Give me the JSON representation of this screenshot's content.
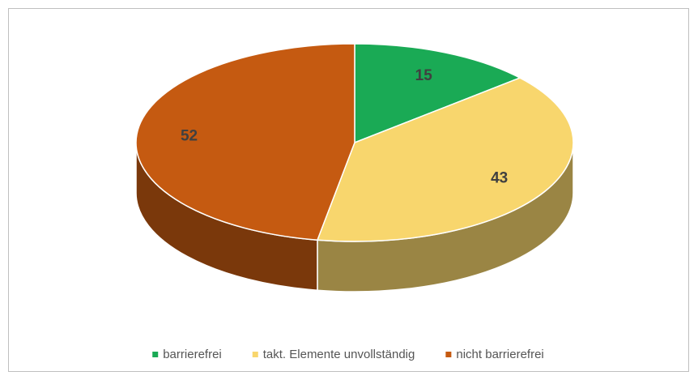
{
  "chart_data": {
    "type": "pie",
    "categories": [
      "barrierefrei",
      "takt. Elemente unvollständig",
      "nicht barrierefrei"
    ],
    "values": [
      15,
      43,
      52
    ],
    "colors": [
      "#1aaa55",
      "#f8d66d",
      "#c55a11"
    ],
    "legend": "bottom"
  }
}
